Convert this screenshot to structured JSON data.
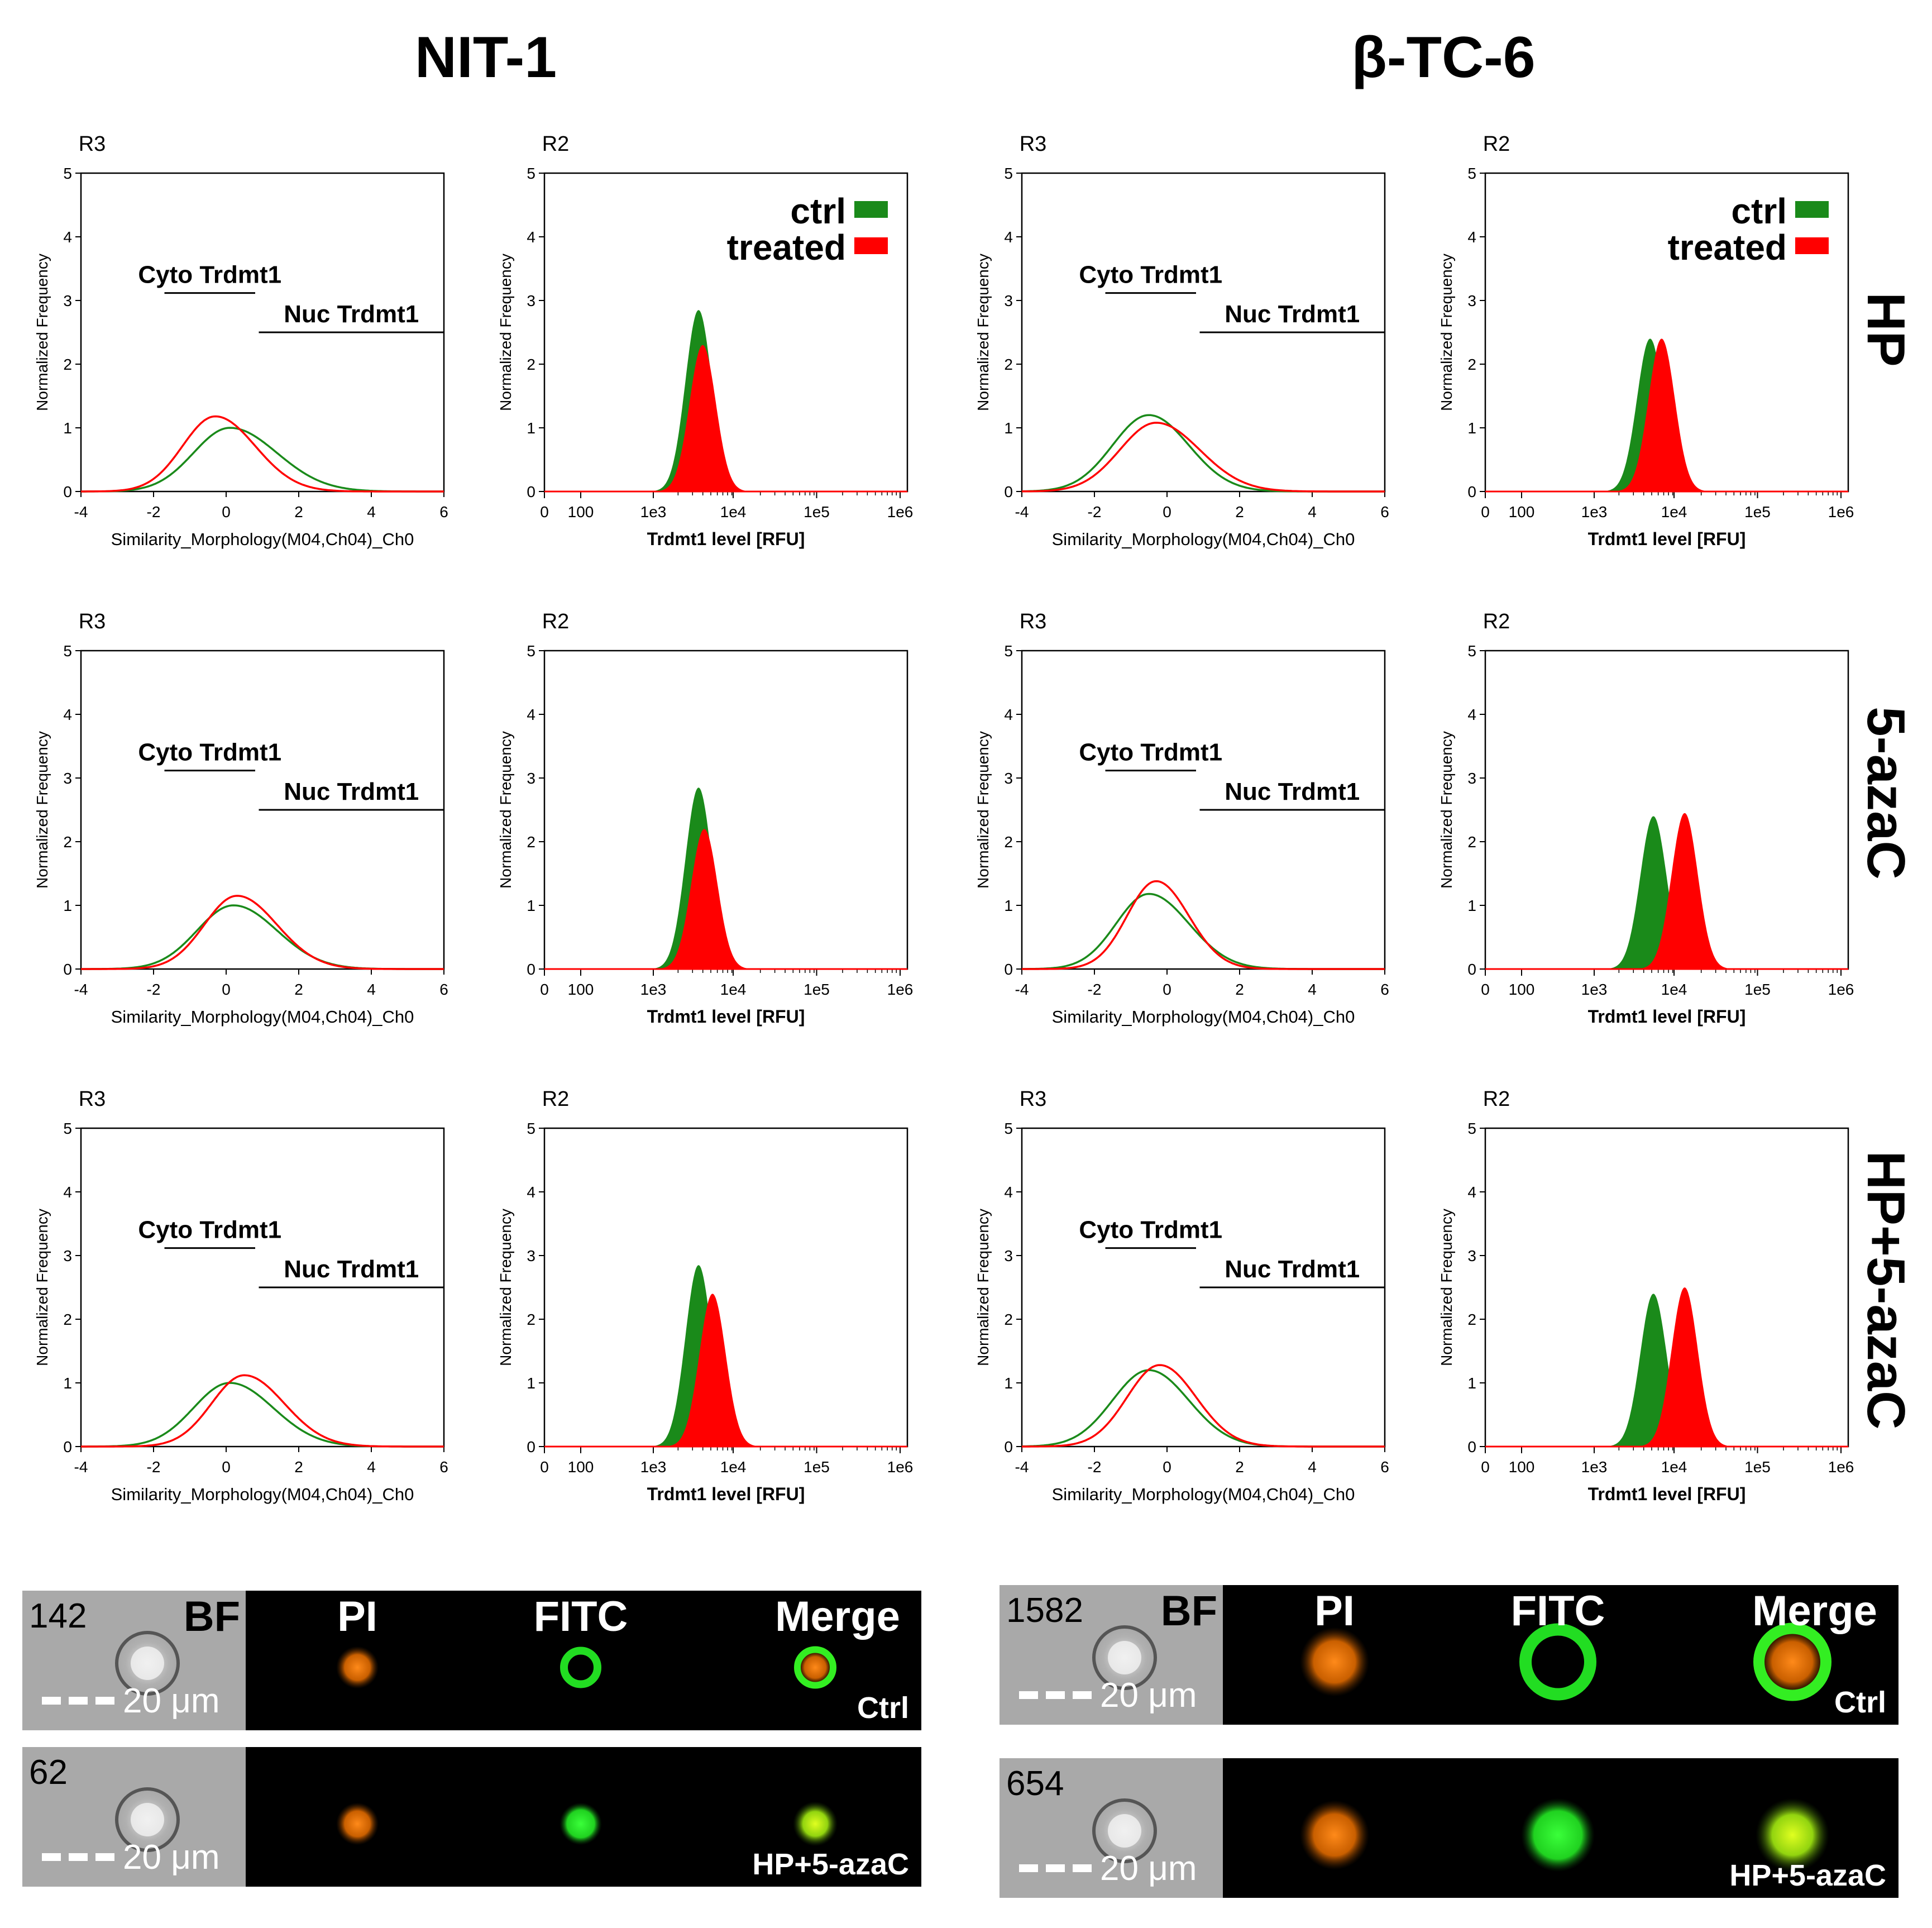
{
  "column_titles": [
    "NIT-1",
    "β-TC-6"
  ],
  "row_labels": [
    "HP",
    "5-azaC",
    "HP+5-azaC"
  ],
  "legend": {
    "ctrl": "ctrl",
    "treated": "treated",
    "ctrl_color": "#1a8a1a",
    "treated_color": "#ff0000"
  },
  "chart_data": [
    {
      "type": "line",
      "cell": "NIT-1 HP",
      "region": "R3",
      "ylabel": "Normalized Frequency",
      "xlabel": "Similarity_Morphology(M04,Ch04)_Ch0",
      "xlim": [
        -4,
        6
      ],
      "ylim": [
        0,
        5
      ],
      "xticks": [
        "-4",
        "-2",
        "0",
        "2",
        "4",
        "6"
      ],
      "yticks": [
        "0",
        "1",
        "2",
        "3",
        "4",
        "5"
      ],
      "gates": {
        "cyto_label": "Cyto Trdmt1",
        "nuc_label": "Nuc Trdmt1",
        "cyto_range": [
          -1.7,
          0.8
        ],
        "nuc_range": [
          0.9,
          6
        ]
      },
      "series": [
        {
          "name": "ctrl",
          "peak_x": 0.1,
          "peak_y": 1.0,
          "sigma_left": 1.0,
          "sigma_right": 1.3
        },
        {
          "name": "treated",
          "peak_x": -0.3,
          "peak_y": 1.18,
          "sigma_left": 0.9,
          "sigma_right": 1.1
        }
      ]
    },
    {
      "type": "area",
      "cell": "NIT-1 HP",
      "region": "R2",
      "ylabel": "Normalized Frequency",
      "xlabel": "Trdmt1 level [RFU]",
      "xticks": [
        "0",
        "100",
        "1e3",
        "1e4",
        "1e5",
        "1e6"
      ],
      "yticks": [
        "0",
        "1",
        "2",
        "3",
        "4",
        "5"
      ],
      "ylim": [
        0,
        5
      ],
      "show_legend": true,
      "series": [
        {
          "name": "ctrl",
          "peak_log10": 3.55,
          "peak_y": 2.85
        },
        {
          "name": "treated",
          "peak_log10": 3.6,
          "peak_y": 2.3
        }
      ]
    },
    {
      "type": "line",
      "cell": "β-TC-6 HP",
      "region": "R3",
      "ylabel": "Normalized Frequency",
      "xlabel": "Similarity_Morphology(M04,Ch04)_Ch0",
      "xlim": [
        -4,
        6
      ],
      "ylim": [
        0,
        5
      ],
      "xticks": [
        "-4",
        "-2",
        "0",
        "2",
        "4",
        "6"
      ],
      "yticks": [
        "0",
        "1",
        "2",
        "3",
        "4",
        "5"
      ],
      "gates": {
        "cyto_label": "Cyto Trdmt1",
        "nuc_label": "Nuc Trdmt1",
        "cyto_range": [
          -1.7,
          0.8
        ],
        "nuc_range": [
          0.9,
          6
        ]
      },
      "series": [
        {
          "name": "ctrl",
          "peak_x": -0.5,
          "peak_y": 1.2,
          "sigma_left": 1.0,
          "sigma_right": 1.1
        },
        {
          "name": "treated",
          "peak_x": -0.3,
          "peak_y": 1.08,
          "sigma_left": 1.0,
          "sigma_right": 1.2
        }
      ]
    },
    {
      "type": "area",
      "cell": "β-TC-6 HP",
      "region": "R2",
      "ylabel": "Normalized Frequency",
      "xlabel": "Trdmt1 level [RFU]",
      "xticks": [
        "0",
        "100",
        "1e3",
        "1e4",
        "1e5",
        "1e6"
      ],
      "yticks": [
        "0",
        "1",
        "2",
        "3",
        "4",
        "5"
      ],
      "ylim": [
        0,
        5
      ],
      "show_legend": true,
      "series": [
        {
          "name": "ctrl",
          "peak_log10": 3.68,
          "peak_y": 2.4
        },
        {
          "name": "treated",
          "peak_log10": 3.82,
          "peak_y": 2.4
        }
      ]
    },
    {
      "type": "line",
      "cell": "NIT-1 5-azaC",
      "region": "R3",
      "ylabel": "Normalized Frequency",
      "xlabel": "Similarity_Morphology(M04,Ch04)_Ch0",
      "xlim": [
        -4,
        6
      ],
      "ylim": [
        0,
        5
      ],
      "xticks": [
        "-4",
        "-2",
        "0",
        "2",
        "4",
        "6"
      ],
      "yticks": [
        "0",
        "1",
        "2",
        "3",
        "4",
        "5"
      ],
      "gates": {
        "cyto_label": "Cyto Trdmt1",
        "nuc_label": "Nuc Trdmt1",
        "cyto_range": [
          -1.7,
          0.8
        ],
        "nuc_range": [
          0.9,
          6
        ]
      },
      "series": [
        {
          "name": "ctrl",
          "peak_x": 0.2,
          "peak_y": 1.0,
          "sigma_left": 1.0,
          "sigma_right": 1.2
        },
        {
          "name": "treated",
          "peak_x": 0.3,
          "peak_y": 1.15,
          "sigma_left": 0.9,
          "sigma_right": 1.1
        }
      ]
    },
    {
      "type": "area",
      "cell": "NIT-1 5-azaC",
      "region": "R2",
      "ylabel": "Normalized Frequency",
      "xlabel": "Trdmt1 level [RFU]",
      "xticks": [
        "0",
        "100",
        "1e3",
        "1e4",
        "1e5",
        "1e6"
      ],
      "yticks": [
        "0",
        "1",
        "2",
        "3",
        "4",
        "5"
      ],
      "ylim": [
        0,
        5
      ],
      "show_legend": false,
      "series": [
        {
          "name": "ctrl",
          "peak_log10": 3.55,
          "peak_y": 2.85
        },
        {
          "name": "treated",
          "peak_log10": 3.62,
          "peak_y": 2.2
        }
      ]
    },
    {
      "type": "line",
      "cell": "β-TC-6 5-azaC",
      "region": "R3",
      "ylabel": "Normalized Frequency",
      "xlabel": "Similarity_Morphology(M04,Ch04)_Ch0",
      "xlim": [
        -4,
        6
      ],
      "ylim": [
        0,
        5
      ],
      "xticks": [
        "-4",
        "-2",
        "0",
        "2",
        "4",
        "6"
      ],
      "yticks": [
        "0",
        "1",
        "2",
        "3",
        "4",
        "5"
      ],
      "gates": {
        "cyto_label": "Cyto Trdmt1",
        "nuc_label": "Nuc Trdmt1",
        "cyto_range": [
          -1.7,
          0.8
        ],
        "nuc_range": [
          0.9,
          6
        ]
      },
      "series": [
        {
          "name": "ctrl",
          "peak_x": -0.5,
          "peak_y": 1.18,
          "sigma_left": 0.9,
          "sigma_right": 1.1
        },
        {
          "name": "treated",
          "peak_x": -0.3,
          "peak_y": 1.38,
          "sigma_left": 0.8,
          "sigma_right": 0.9
        }
      ]
    },
    {
      "type": "area",
      "cell": "β-TC-6 5-azaC",
      "region": "R2",
      "ylabel": "Normalized Frequency",
      "xlabel": "Trdmt1 level [RFU]",
      "xticks": [
        "0",
        "100",
        "1e3",
        "1e4",
        "1e5",
        "1e6"
      ],
      "yticks": [
        "0",
        "1",
        "2",
        "3",
        "4",
        "5"
      ],
      "ylim": [
        0,
        5
      ],
      "show_legend": false,
      "series": [
        {
          "name": "ctrl",
          "peak_log10": 3.72,
          "peak_y": 2.4
        },
        {
          "name": "treated",
          "peak_log10": 4.1,
          "peak_y": 2.45
        }
      ]
    },
    {
      "type": "line",
      "cell": "NIT-1 HP+5-azaC",
      "region": "R3",
      "ylabel": "Normalized Frequency",
      "xlabel": "Similarity_Morphology(M04,Ch04)_Ch0",
      "xlim": [
        -4,
        6
      ],
      "ylim": [
        0,
        5
      ],
      "xticks": [
        "-4",
        "-2",
        "0",
        "2",
        "4",
        "6"
      ],
      "yticks": [
        "0",
        "1",
        "2",
        "3",
        "4",
        "5"
      ],
      "gates": {
        "cyto_label": "Cyto Trdmt1",
        "nuc_label": "Nuc Trdmt1",
        "cyto_range": [
          -1.7,
          0.8
        ],
        "nuc_range": [
          0.9,
          6
        ]
      },
      "series": [
        {
          "name": "ctrl",
          "peak_x": 0.1,
          "peak_y": 1.0,
          "sigma_left": 1.0,
          "sigma_right": 1.2
        },
        {
          "name": "treated",
          "peak_x": 0.5,
          "peak_y": 1.12,
          "sigma_left": 0.9,
          "sigma_right": 1.1
        }
      ]
    },
    {
      "type": "area",
      "cell": "NIT-1 HP+5-azaC",
      "region": "R2",
      "ylabel": "Normalized Frequency",
      "xlabel": "Trdmt1 level [RFU]",
      "xticks": [
        "0",
        "100",
        "1e3",
        "1e4",
        "1e5",
        "1e6"
      ],
      "yticks": [
        "0",
        "1",
        "2",
        "3",
        "4",
        "5"
      ],
      "ylim": [
        0,
        5
      ],
      "show_legend": false,
      "series": [
        {
          "name": "ctrl",
          "peak_log10": 3.55,
          "peak_y": 2.85
        },
        {
          "name": "treated",
          "peak_log10": 3.72,
          "peak_y": 2.4
        }
      ]
    },
    {
      "type": "line",
      "cell": "β-TC-6 HP+5-azaC",
      "region": "R3",
      "ylabel": "Normalized Frequency",
      "xlabel": "Similarity_Morphology(M04,Ch04)_Ch0",
      "xlim": [
        -4,
        6
      ],
      "ylim": [
        0,
        5
      ],
      "xticks": [
        "-4",
        "-2",
        "0",
        "2",
        "4",
        "6"
      ],
      "yticks": [
        "0",
        "1",
        "2",
        "3",
        "4",
        "5"
      ],
      "gates": {
        "cyto_label": "Cyto Trdmt1",
        "nuc_label": "Nuc Trdmt1",
        "cyto_range": [
          -1.7,
          0.8
        ],
        "nuc_range": [
          0.9,
          6
        ]
      },
      "series": [
        {
          "name": "ctrl",
          "peak_x": -0.5,
          "peak_y": 1.2,
          "sigma_left": 1.0,
          "sigma_right": 1.1
        },
        {
          "name": "treated",
          "peak_x": -0.2,
          "peak_y": 1.28,
          "sigma_left": 0.9,
          "sigma_right": 1.0
        }
      ]
    },
    {
      "type": "area",
      "cell": "β-TC-6 HP+5-azaC",
      "region": "R2",
      "ylabel": "Normalized Frequency",
      "xlabel": "Trdmt1 level [RFU]",
      "xticks": [
        "0",
        "100",
        "1e3",
        "1e4",
        "1e5",
        "1e6"
      ],
      "yticks": [
        "0",
        "1",
        "2",
        "3",
        "4",
        "5"
      ],
      "ylim": [
        0,
        5
      ],
      "show_legend": false,
      "series": [
        {
          "name": "ctrl",
          "peak_log10": 3.72,
          "peak_y": 2.4
        },
        {
          "name": "treated",
          "peak_log10": 4.1,
          "peak_y": 2.5
        }
      ]
    }
  ],
  "image_strips": [
    {
      "cell_number": "142",
      "channels": [
        "BF",
        "PI",
        "FITC",
        "Merge"
      ],
      "scale": "20 μm",
      "condition": "Ctrl",
      "fitc_pattern": "ring"
    },
    {
      "cell_number": "62",
      "channels": [],
      "scale": "20 μm",
      "condition": "HP+5-azaC",
      "fitc_pattern": "solid"
    },
    {
      "cell_number": "1582",
      "channels": [
        "BF",
        "PI",
        "FITC",
        "Merge"
      ],
      "scale": "20 μm",
      "condition": "Ctrl",
      "fitc_pattern": "ring"
    },
    {
      "cell_number": "654",
      "channels": [],
      "scale": "20 μm",
      "condition": "HP+5-azaC",
      "fitc_pattern": "solid"
    }
  ]
}
